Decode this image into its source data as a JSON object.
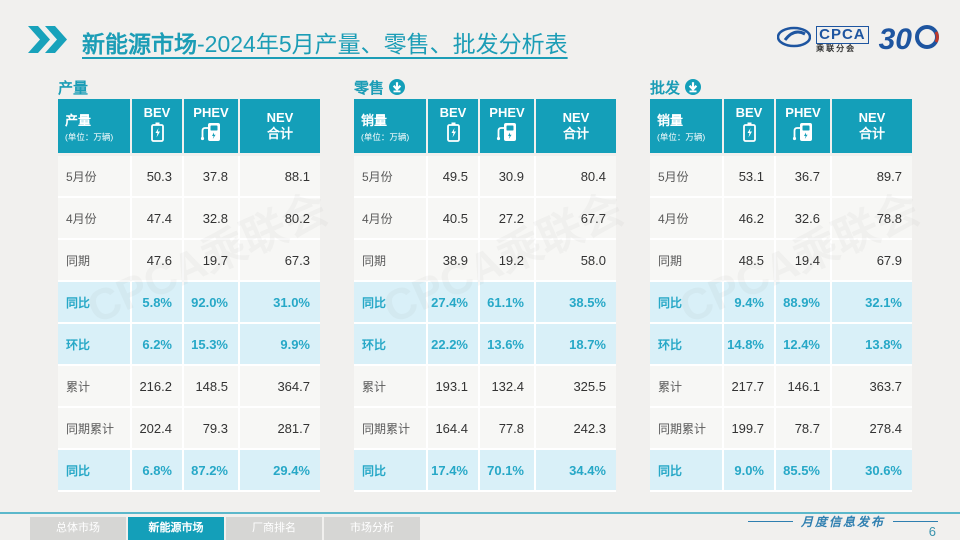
{
  "page": {
    "title_highlight": "新能源市场",
    "title_rest": "-2024年5月产量、零售、批发分析表",
    "watermark": "CPCA乘联会",
    "footer_label": "月度信息发布",
    "page_number": "6"
  },
  "logos": {
    "cpca_text": "CPCA",
    "cpca_sub": "乘联分会",
    "anniversary": "30"
  },
  "colors": {
    "accent_teal": "#149fb9",
    "highlight_bg": "#d9f0f8",
    "highlight_text": "#27a8c7",
    "logo_blue": "#1e55a0"
  },
  "tabs": [
    {
      "label": "总体市场",
      "active": false
    },
    {
      "label": "新能源市场",
      "active": true
    },
    {
      "label": "厂商排名",
      "active": false
    },
    {
      "label": "市场分析",
      "active": false
    }
  ],
  "chart_data": {
    "type": "table",
    "note": "three data tables, see tables[]"
  },
  "tables": [
    {
      "section_title": "产量",
      "has_arrow": false,
      "corner_label": "产量",
      "corner_unit": "(单位：万辆)",
      "columns": [
        "BEV",
        "PHEV",
        "NEV\n合计"
      ],
      "rows": [
        {
          "label": "5月份",
          "values": [
            "50.3",
            "37.8",
            "88.1"
          ],
          "highlight": false
        },
        {
          "label": "4月份",
          "values": [
            "47.4",
            "32.8",
            "80.2"
          ],
          "highlight": false
        },
        {
          "label": "同期",
          "values": [
            "47.6",
            "19.7",
            "67.3"
          ],
          "highlight": false
        },
        {
          "label": "同比",
          "values": [
            "5.8%",
            "92.0%",
            "31.0%"
          ],
          "highlight": true
        },
        {
          "label": "环比",
          "values": [
            "6.2%",
            "15.3%",
            "9.9%"
          ],
          "highlight": true
        },
        {
          "label": "累计",
          "values": [
            "216.2",
            "148.5",
            "364.7"
          ],
          "highlight": false
        },
        {
          "label": "同期累计",
          "values": [
            "202.4",
            "79.3",
            "281.7"
          ],
          "highlight": false
        },
        {
          "label": "同比",
          "values": [
            "6.8%",
            "87.2%",
            "29.4%"
          ],
          "highlight": true
        }
      ]
    },
    {
      "section_title": "零售",
      "has_arrow": true,
      "corner_label": "销量",
      "corner_unit": "(单位：万辆)",
      "columns": [
        "BEV",
        "PHEV",
        "NEV\n合计"
      ],
      "rows": [
        {
          "label": "5月份",
          "values": [
            "49.5",
            "30.9",
            "80.4"
          ],
          "highlight": false
        },
        {
          "label": "4月份",
          "values": [
            "40.5",
            "27.2",
            "67.7"
          ],
          "highlight": false
        },
        {
          "label": "同期",
          "values": [
            "38.9",
            "19.2",
            "58.0"
          ],
          "highlight": false
        },
        {
          "label": "同比",
          "values": [
            "27.4%",
            "61.1%",
            "38.5%"
          ],
          "highlight": true
        },
        {
          "label": "环比",
          "values": [
            "22.2%",
            "13.6%",
            "18.7%"
          ],
          "highlight": true
        },
        {
          "label": "累计",
          "values": [
            "193.1",
            "132.4",
            "325.5"
          ],
          "highlight": false
        },
        {
          "label": "同期累计",
          "values": [
            "164.4",
            "77.8",
            "242.3"
          ],
          "highlight": false
        },
        {
          "label": "同比",
          "values": [
            "17.4%",
            "70.1%",
            "34.4%"
          ],
          "highlight": true
        }
      ]
    },
    {
      "section_title": "批发",
      "has_arrow": true,
      "corner_label": "销量",
      "corner_unit": "(单位：万辆)",
      "columns": [
        "BEV",
        "PHEV",
        "NEV\n合计"
      ],
      "rows": [
        {
          "label": "5月份",
          "values": [
            "53.1",
            "36.7",
            "89.7"
          ],
          "highlight": false
        },
        {
          "label": "4月份",
          "values": [
            "46.2",
            "32.6",
            "78.8"
          ],
          "highlight": false
        },
        {
          "label": "同期",
          "values": [
            "48.5",
            "19.4",
            "67.9"
          ],
          "highlight": false
        },
        {
          "label": "同比",
          "values": [
            "9.4%",
            "88.9%",
            "32.1%"
          ],
          "highlight": true
        },
        {
          "label": "环比",
          "values": [
            "14.8%",
            "12.4%",
            "13.8%"
          ],
          "highlight": true
        },
        {
          "label": "累计",
          "values": [
            "217.7",
            "146.1",
            "363.7"
          ],
          "highlight": false
        },
        {
          "label": "同期累计",
          "values": [
            "199.7",
            "78.7",
            "278.4"
          ],
          "highlight": false
        },
        {
          "label": "同比",
          "values": [
            "9.0%",
            "85.5%",
            "30.6%"
          ],
          "highlight": true
        }
      ]
    }
  ]
}
